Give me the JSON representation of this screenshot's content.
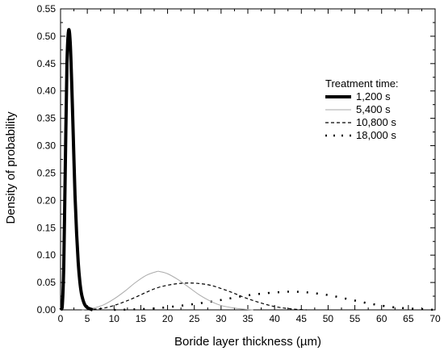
{
  "chart_data": {
    "type": "line",
    "title": "",
    "xlabel": "Boride layer thickness (µm)",
    "ylabel": "Density of probability",
    "xlim": [
      0,
      70
    ],
    "ylim": [
      0,
      0.55
    ],
    "x_ticks": [
      "0",
      "5",
      "10",
      "15",
      "20",
      "25",
      "30",
      "35",
      "40",
      "45",
      "50",
      "55",
      "60",
      "65",
      "70"
    ],
    "y_ticks": [
      "0.00",
      "0.05",
      "0.10",
      "0.15",
      "0.20",
      "0.25",
      "0.30",
      "0.35",
      "0.40",
      "0.45",
      "0.50",
      "0.55"
    ],
    "grid": false,
    "legend": {
      "title": "Treatment time:",
      "position": "right-middle"
    },
    "series": [
      {
        "name": "1,200 s",
        "style": "solid-thick",
        "color": "#000000",
        "x": [
          0,
          0.3,
          0.6,
          0.9,
          1.2,
          1.5,
          1.8,
          2.1,
          2.4,
          2.7,
          3.0,
          3.3,
          3.6,
          3.9,
          4.2,
          4.5,
          4.8,
          5.2,
          5.6,
          6.0
        ],
        "y": [
          0.0,
          0.004,
          0.08,
          0.27,
          0.45,
          0.51,
          0.49,
          0.41,
          0.31,
          0.21,
          0.14,
          0.087,
          0.052,
          0.03,
          0.018,
          0.01,
          0.006,
          0.003,
          0.0015,
          0.0
        ]
      },
      {
        "name": "5,400 s",
        "style": "solid-thin",
        "color": "#aaaaaa",
        "x": [
          4,
          6,
          8,
          10,
          12,
          14,
          16,
          18,
          18.5,
          20,
          22,
          24,
          26,
          28,
          30,
          32,
          34,
          36
        ],
        "y": [
          0.0,
          0.003,
          0.009,
          0.02,
          0.034,
          0.05,
          0.063,
          0.07,
          0.07,
          0.066,
          0.055,
          0.041,
          0.027,
          0.016,
          0.008,
          0.004,
          0.0015,
          0.0
        ]
      },
      {
        "name": "10,800 s",
        "style": "dashed",
        "color": "#000000",
        "x": [
          4,
          6,
          8,
          10,
          12,
          14,
          16,
          18,
          20,
          22,
          24,
          26,
          28,
          30,
          32,
          34,
          36,
          38,
          40,
          42,
          44,
          46
        ],
        "y": [
          0.0,
          0.001,
          0.003,
          0.008,
          0.015,
          0.023,
          0.032,
          0.04,
          0.045,
          0.048,
          0.049,
          0.048,
          0.045,
          0.039,
          0.032,
          0.024,
          0.017,
          0.011,
          0.006,
          0.003,
          0.001,
          0.0
        ]
      },
      {
        "name": "18,000 s",
        "style": "dotted",
        "color": "#000000",
        "x": [
          10,
          14,
          18,
          22,
          26,
          30,
          34,
          38,
          42,
          44,
          46,
          50,
          54,
          58,
          62,
          66,
          70
        ],
        "y": [
          0.0,
          0.001,
          0.003,
          0.007,
          0.012,
          0.018,
          0.025,
          0.03,
          0.033,
          0.033,
          0.032,
          0.027,
          0.019,
          0.011,
          0.005,
          0.002,
          0.0
        ]
      }
    ]
  }
}
